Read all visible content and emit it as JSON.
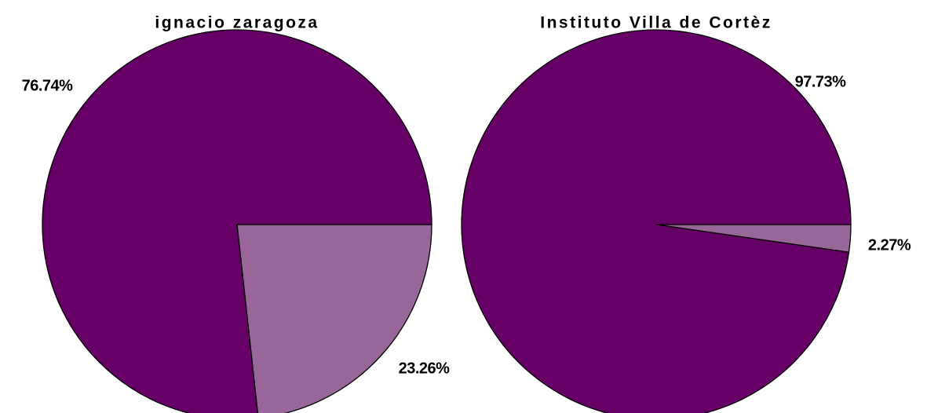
{
  "chart_data": [
    {
      "type": "pie",
      "title": "ignacio zaragoza",
      "values": [
        23.26,
        76.74
      ],
      "value_labels": [
        "23.26%",
        "76.74%"
      ],
      "colors": [
        "#996699",
        "#660066"
      ]
    },
    {
      "type": "pie",
      "title": "Instituto Villa de Cortèz",
      "values": [
        2.27,
        97.73
      ],
      "value_labels": [
        "2.27%",
        "97.73%"
      ],
      "colors": [
        "#996699",
        "#660066"
      ]
    }
  ]
}
